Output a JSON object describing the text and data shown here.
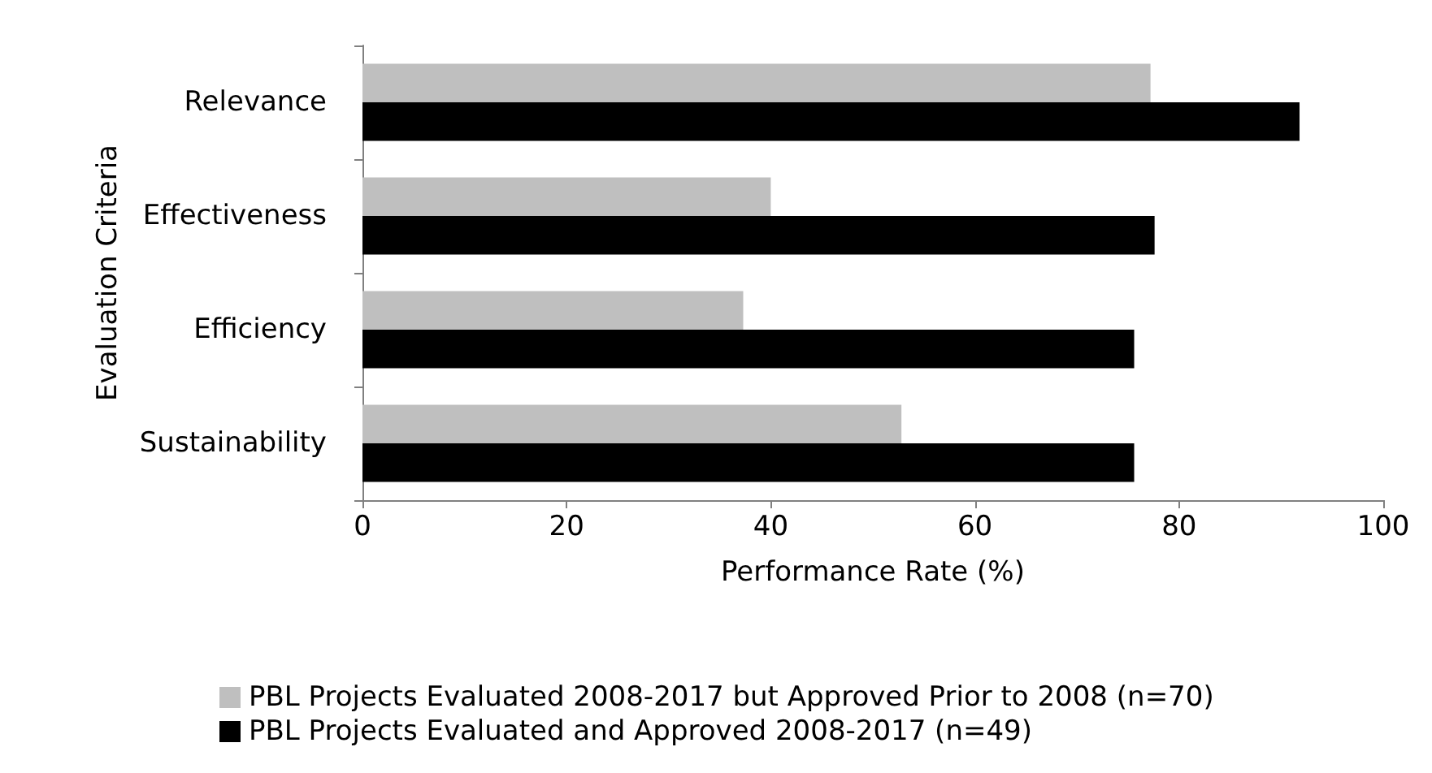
{
  "chart_data": {
    "type": "bar",
    "orientation": "horizontal",
    "xlabel": "Performance Rate (%)",
    "ylabel": "Evaluation Criteria",
    "categories": [
      "Relevance",
      "Effectiveness",
      "Efficiency",
      "Sustainability"
    ],
    "series": [
      {
        "name": "PBL Projects Evaluated 2008-2017 but Approved Prior to 2008 (n=70)",
        "color": "#bfbfbf",
        "values": [
          77.2,
          40,
          37.3,
          52.8
        ]
      },
      {
        "name": "PBL Projects Evaluated and Approved 2008-2017 (n=49)",
        "color": "#000000",
        "values": [
          91.8,
          77.6,
          75.6,
          75.6
        ]
      }
    ],
    "xlim": [
      0,
      100
    ],
    "xticks": [
      0,
      20,
      40,
      60,
      80,
      100
    ],
    "grid": false,
    "legend": "bottom"
  }
}
